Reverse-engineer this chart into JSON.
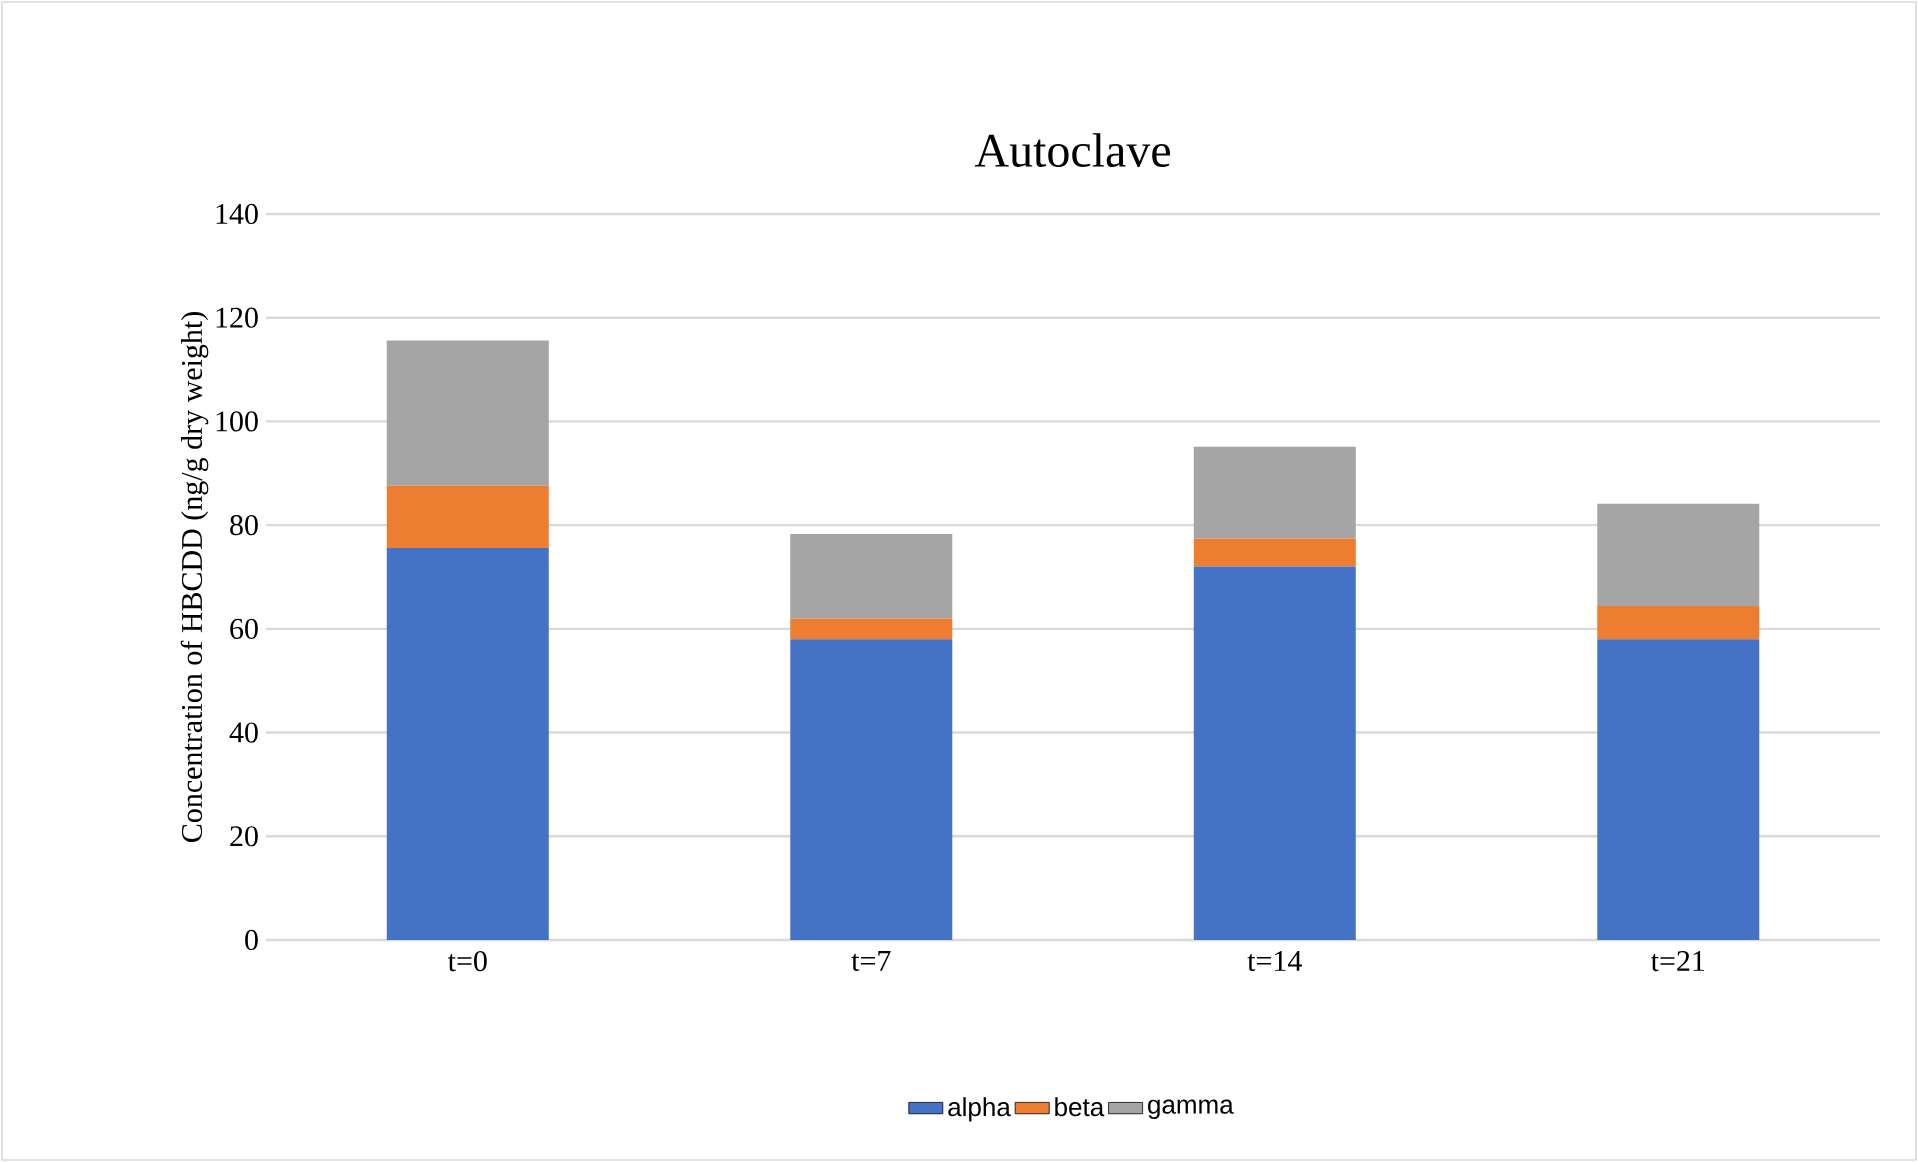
{
  "chart_data": {
    "type": "bar",
    "stacked": true,
    "title": "Autoclave",
    "ylabel": "Concentration of HBCDD (ng/g dry weight)",
    "categories": [
      "t=0",
      "t=7",
      "t=14",
      "t=21"
    ],
    "series": [
      {
        "name": "alpha",
        "color": "#4472c4",
        "values": [
          75.6,
          58,
          72,
          58
        ]
      },
      {
        "name": "beta",
        "color": "#ed7d31",
        "values": [
          12,
          4,
          5.4,
          6.4
        ]
      },
      {
        "name": "gamma",
        "color": "#a5a5a5",
        "values": [
          28,
          16.3,
          17.7,
          19.7
        ]
      }
    ],
    "ylim": [
      0,
      140
    ],
    "yticks": [
      0,
      20,
      40,
      60,
      80,
      100,
      120,
      140
    ],
    "grid": "y",
    "legend": "bottom"
  }
}
